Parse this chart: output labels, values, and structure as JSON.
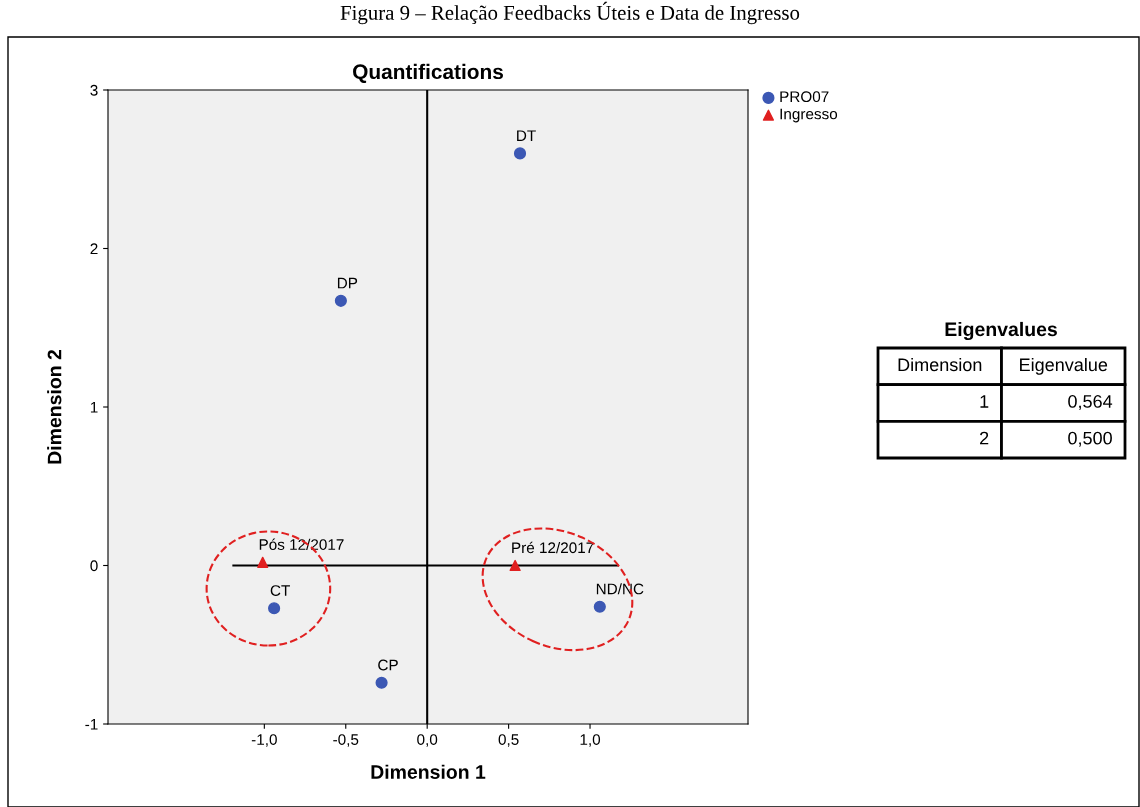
{
  "chart_data": {
    "type": "scatter",
    "title": "Figura 9 – Relação Feedbacks Úteis e Data de Ingresso",
    "subtitle": "Quantifications",
    "xlabel": "Dimension 1",
    "ylabel": "Dimension 2",
    "series": [
      {
        "name": "PRO07",
        "color": "#3c58b4",
        "marker": "circle",
        "x": [
          0.57,
          -0.53,
          -0.94,
          -0.28,
          1.06
        ],
        "values": [
          2.6,
          1.67,
          -0.27,
          -0.74,
          -0.26
        ]
      },
      {
        "name": "Ingresso",
        "color": "#e02020",
        "marker": "triangle",
        "x": [
          -1.01,
          0.54
        ],
        "values": [
          0.02,
          0.0
        ]
      },
      {
        "type": "line",
        "color": "#000000",
        "marker": "none",
        "x": [
          -1.19,
          1.17
        ],
        "values": [
          0,
          0
        ]
      }
    ],
    "annotations": [
      {
        "text": "DT",
        "x": 0.57,
        "y": 2.6
      },
      {
        "text": "DP",
        "x": -0.53,
        "y": 1.67
      },
      {
        "text": "CT",
        "x": -0.94,
        "y": -0.27
      },
      {
        "text": "CP",
        "x": -0.28,
        "y": -0.74
      },
      {
        "text": "ND/NC",
        "x": 1.06,
        "y": -0.26
      },
      {
        "text": "Pós 12/2017",
        "x": -1.01,
        "y": 0.02
      },
      {
        "text": "Pré 12/2017",
        "x": 0.54,
        "y": 0.0
      },
      "Eigenvalues",
      "Dimension",
      "Eigenvalue",
      "1",
      "0,564",
      "2",
      "0,500"
    ],
    "ref_lines": [
      {
        "axis": "x",
        "value": 0,
        "color": "#000000"
      }
    ],
    "xlim": [
      -1.96,
      1.97
    ],
    "ylim": [
      -1,
      3
    ],
    "xticks": [
      {
        "value": -1,
        "label": "-1,0"
      },
      {
        "value": -0.5,
        "label": "-0,5"
      },
      {
        "value": 0,
        "label": "0,0"
      },
      {
        "value": 0.5,
        "label": "0,5"
      },
      {
        "value": 1,
        "label": "1,0"
      }
    ],
    "yticks": [
      -1,
      0,
      1,
      2,
      3
    ],
    "grid": false,
    "legend": "top right"
  }
}
